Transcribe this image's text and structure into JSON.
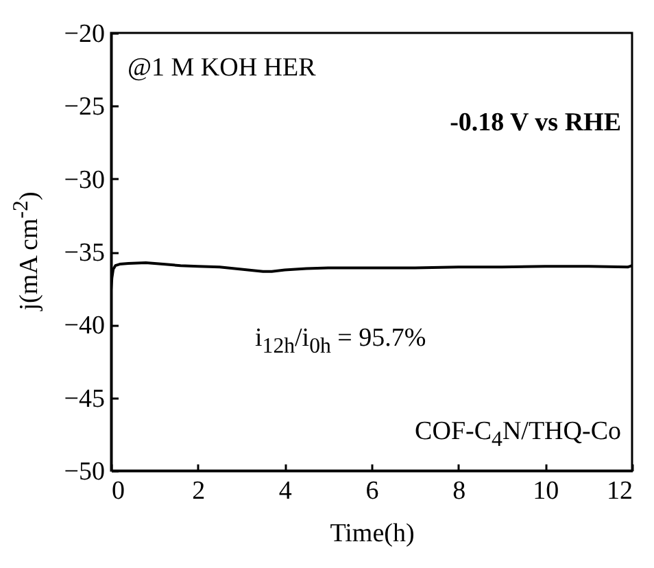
{
  "chart_data": {
    "type": "line",
    "xlabel": "Time(h)",
    "ylabel": "j(mA cm$^{-2}$)",
    "x": [
      0,
      0.02,
      0.05,
      0.1,
      0.2,
      0.4,
      0.8,
      1.2,
      1.6,
      2.0,
      2.5,
      3.0,
      3.5,
      3.7,
      4.0,
      4.5,
      5.0,
      6.0,
      7.0,
      8.0,
      9.0,
      10.0,
      11.0,
      11.9,
      12.0
    ],
    "series": [
      {
        "color": "#000000",
        "values": [
          -37.6,
          -36.8,
          -36.2,
          -35.95,
          -35.85,
          -35.8,
          -35.75,
          -35.85,
          -35.95,
          -36.0,
          -36.05,
          -36.2,
          -36.35,
          -36.35,
          -36.25,
          -36.15,
          -36.1,
          -36.1,
          -36.1,
          -36.05,
          -36.05,
          -36.0,
          -36.0,
          -36.05,
          -35.95
        ]
      }
    ],
    "xlim": [
      0,
      12
    ],
    "ylim": [
      -50,
      -20
    ],
    "xticks": [
      0,
      2,
      4,
      6,
      8,
      10,
      12
    ],
    "yticks": [
      -50,
      -45,
      -40,
      -35,
      -30,
      -25,
      -20
    ],
    "grid": false,
    "legend": false,
    "marker": "none",
    "line_style": "solid",
    "annotations": [
      "@1 M KOH HER",
      "-0.18 V vs RHE",
      "i$_{12h}$/i$_{0h}$ = 95.7%",
      "COF-C$_{4}$N/THQ-Co"
    ]
  }
}
